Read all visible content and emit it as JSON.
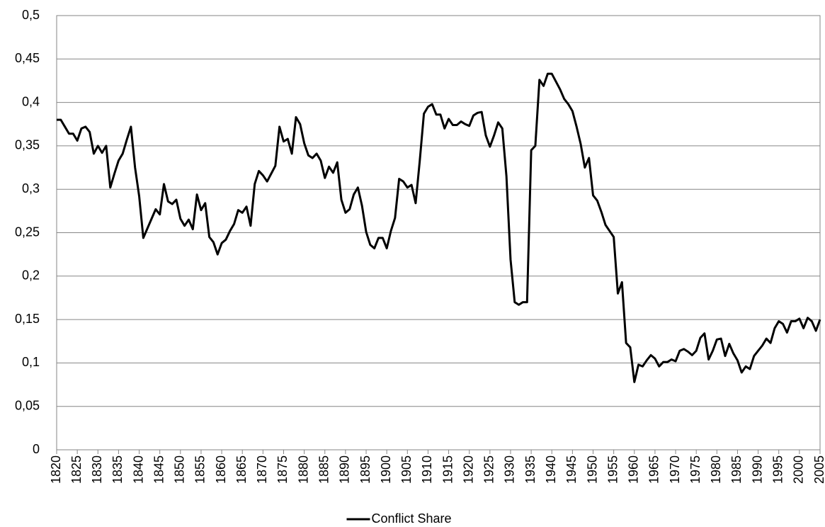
{
  "chart_data": {
    "type": "line",
    "x": [
      1820,
      1821,
      1822,
      1823,
      1824,
      1825,
      1826,
      1827,
      1828,
      1829,
      1830,
      1831,
      1832,
      1833,
      1834,
      1835,
      1836,
      1837,
      1838,
      1839,
      1840,
      1841,
      1842,
      1843,
      1844,
      1845,
      1846,
      1847,
      1848,
      1849,
      1850,
      1851,
      1852,
      1853,
      1854,
      1855,
      1856,
      1857,
      1858,
      1859,
      1860,
      1861,
      1862,
      1863,
      1864,
      1865,
      1866,
      1867,
      1868,
      1869,
      1870,
      1871,
      1872,
      1873,
      1874,
      1875,
      1876,
      1877,
      1878,
      1879,
      1880,
      1881,
      1882,
      1883,
      1884,
      1885,
      1886,
      1887,
      1888,
      1889,
      1890,
      1891,
      1892,
      1893,
      1894,
      1895,
      1896,
      1897,
      1898,
      1899,
      1900,
      1901,
      1902,
      1903,
      1904,
      1905,
      1906,
      1907,
      1908,
      1909,
      1910,
      1911,
      1912,
      1913,
      1914,
      1915,
      1916,
      1917,
      1918,
      1919,
      1920,
      1921,
      1922,
      1923,
      1924,
      1925,
      1926,
      1927,
      1928,
      1929,
      1930,
      1931,
      1932,
      1933,
      1934,
      1935,
      1936,
      1937,
      1938,
      1939,
      1940,
      1941,
      1942,
      1943,
      1944,
      1945,
      1946,
      1947,
      1948,
      1949,
      1950,
      1951,
      1952,
      1953,
      1954,
      1955,
      1956,
      1957,
      1958,
      1959,
      1960,
      1961,
      1962,
      1963,
      1964,
      1965,
      1966,
      1967,
      1968,
      1969,
      1970,
      1971,
      1972,
      1973,
      1974,
      1975,
      1976,
      1977,
      1978,
      1979,
      1980,
      1981,
      1982,
      1983,
      1984,
      1985,
      1986,
      1987,
      1988,
      1989,
      1990,
      1991,
      1992,
      1993,
      1994,
      1995,
      1996,
      1997,
      1998,
      1999,
      2000,
      2001,
      2002,
      2003,
      2004,
      2005
    ],
    "series": [
      {
        "name": "Conflict Share",
        "color": "#000000",
        "values": [
          0.38,
          0.38,
          0.372,
          0.364,
          0.364,
          0.356,
          0.37,
          0.372,
          0.366,
          0.341,
          0.35,
          0.342,
          0.35,
          0.302,
          0.318,
          0.333,
          0.341,
          0.357,
          0.372,
          0.325,
          0.292,
          0.244,
          0.255,
          0.266,
          0.277,
          0.271,
          0.306,
          0.286,
          0.283,
          0.288,
          0.266,
          0.258,
          0.265,
          0.254,
          0.294,
          0.276,
          0.284,
          0.245,
          0.239,
          0.225,
          0.238,
          0.242,
          0.252,
          0.26,
          0.276,
          0.273,
          0.28,
          0.258,
          0.306,
          0.321,
          0.316,
          0.309,
          0.318,
          0.327,
          0.372,
          0.355,
          0.358,
          0.341,
          0.383,
          0.375,
          0.353,
          0.339,
          0.336,
          0.341,
          0.333,
          0.313,
          0.326,
          0.319,
          0.331,
          0.288,
          0.273,
          0.277,
          0.294,
          0.302,
          0.281,
          0.251,
          0.236,
          0.232,
          0.244,
          0.244,
          0.232,
          0.252,
          0.267,
          0.312,
          0.309,
          0.302,
          0.305,
          0.284,
          0.333,
          0.387,
          0.395,
          0.398,
          0.386,
          0.386,
          0.37,
          0.381,
          0.374,
          0.374,
          0.378,
          0.375,
          0.373,
          0.385,
          0.388,
          0.389,
          0.362,
          0.349,
          0.362,
          0.377,
          0.37,
          0.315,
          0.219,
          0.17,
          0.167,
          0.17,
          0.17,
          0.345,
          0.35,
          0.426,
          0.419,
          0.433,
          0.433,
          0.424,
          0.415,
          0.404,
          0.398,
          0.39,
          0.372,
          0.352,
          0.325,
          0.336,
          0.293,
          0.287,
          0.274,
          0.259,
          0.252,
          0.245,
          0.18,
          0.193,
          0.123,
          0.118,
          0.078,
          0.098,
          0.096,
          0.103,
          0.109,
          0.105,
          0.096,
          0.101,
          0.101,
          0.104,
          0.102,
          0.114,
          0.116,
          0.113,
          0.109,
          0.114,
          0.129,
          0.134,
          0.104,
          0.114,
          0.127,
          0.128,
          0.108,
          0.122,
          0.111,
          0.103,
          0.089,
          0.096,
          0.093,
          0.108,
          0.114,
          0.12,
          0.128,
          0.123,
          0.14,
          0.148,
          0.145,
          0.135,
          0.148,
          0.148,
          0.151,
          0.14,
          0.152,
          0.148,
          0.137,
          0.15
        ]
      }
    ],
    "xlim": [
      1820,
      2005
    ],
    "xticks": [
      1820,
      1825,
      1830,
      1835,
      1840,
      1845,
      1850,
      1855,
      1860,
      1865,
      1870,
      1875,
      1880,
      1885,
      1890,
      1895,
      1900,
      1905,
      1910,
      1915,
      1920,
      1925,
      1930,
      1935,
      1940,
      1945,
      1950,
      1955,
      1960,
      1965,
      1970,
      1975,
      1980,
      1985,
      1990,
      1995,
      2000,
      2005
    ],
    "ylim": [
      0,
      0.5
    ],
    "yticks": [
      0,
      {
        "value": 0.05,
        "label": "0,05"
      },
      {
        "value": 0.1,
        "label": "0,1"
      },
      {
        "value": 0.15,
        "label": "0,15"
      },
      {
        "value": 0.2,
        "label": "0,2"
      },
      {
        "value": 0.25,
        "label": "0,25"
      },
      {
        "value": 0.3,
        "label": "0,3"
      },
      {
        "value": 0.35,
        "label": "0,35"
      },
      {
        "value": 0.4,
        "label": "0,4"
      },
      {
        "value": 0.45,
        "label": "0,45"
      },
      {
        "value": 0.5,
        "label": "0,5"
      }
    ],
    "grid": true,
    "legend": "bottom"
  }
}
